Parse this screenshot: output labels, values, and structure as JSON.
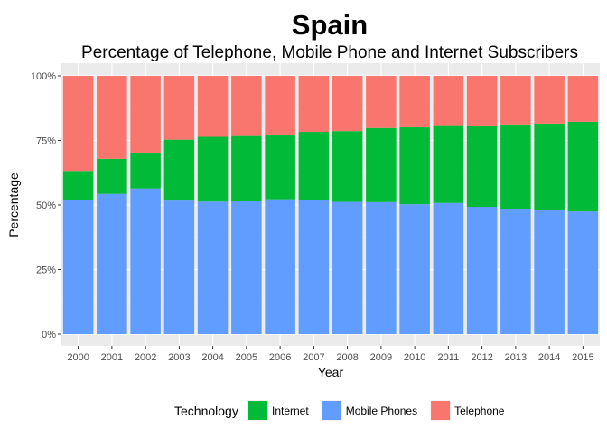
{
  "chart_data": {
    "type": "bar",
    "stacked": true,
    "percent": true,
    "title": "Spain",
    "subtitle": "Percentage of Telephone, Mobile Phone and Internet Subscribers",
    "xlabel": "Year",
    "ylabel": "Percentage",
    "ylim": [
      0,
      100
    ],
    "yticks": [
      "0%",
      "25%",
      "50%",
      "75%",
      "100%"
    ],
    "grid": true,
    "legend_position": "bottom",
    "legend_title": "Technology",
    "categories": [
      "2000",
      "2001",
      "2002",
      "2003",
      "2004",
      "2005",
      "2006",
      "2007",
      "2008",
      "2009",
      "2010",
      "2011",
      "2012",
      "2013",
      "2014",
      "2015"
    ],
    "series": [
      {
        "name": "Mobile Phones",
        "color": "#619CFF",
        "values": [
          51.8,
          54.3,
          56.4,
          51.7,
          51.3,
          51.4,
          52.2,
          51.8,
          51.2,
          51.1,
          50.3,
          50.8,
          49.3,
          48.6,
          47.9,
          47.5
        ]
      },
      {
        "name": "Internet",
        "color": "#00BA38",
        "values": [
          11.4,
          13.6,
          13.9,
          23.6,
          25.1,
          25.3,
          25.1,
          26.5,
          27.4,
          28.7,
          29.8,
          30.1,
          31.5,
          32.6,
          33.6,
          34.7
        ]
      },
      {
        "name": "Telephone",
        "color": "#F8766D",
        "values": [
          36.8,
          32.1,
          29.7,
          24.7,
          23.6,
          23.3,
          22.7,
          21.7,
          21.4,
          20.2,
          19.9,
          19.1,
          19.2,
          18.8,
          18.5,
          17.8
        ]
      }
    ],
    "legend_order": [
      "Internet",
      "Mobile Phones",
      "Telephone"
    ]
  }
}
